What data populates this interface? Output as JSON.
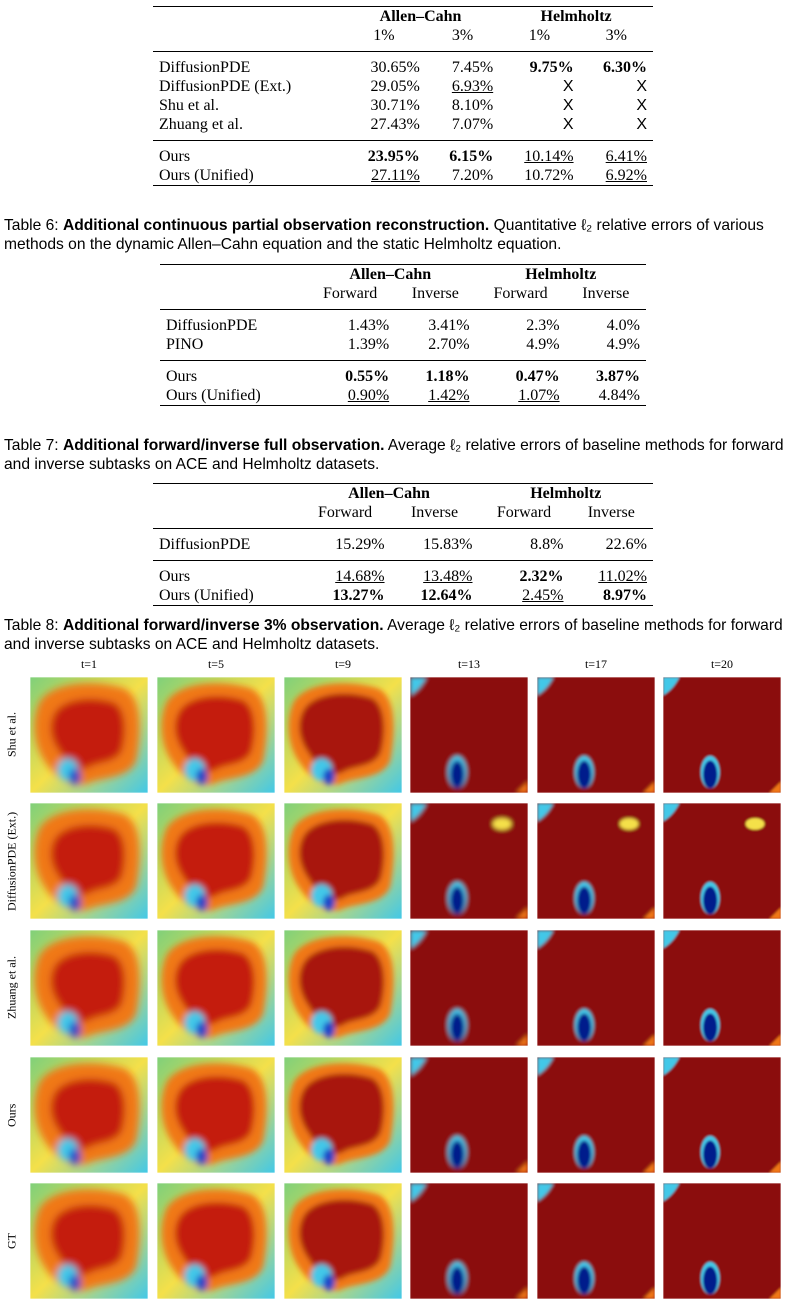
{
  "table6": {
    "groups": [
      "Allen–Cahn",
      "Helmholtz"
    ],
    "sub": [
      "1%",
      "3%",
      "1%",
      "3%"
    ],
    "rows1": [
      {
        "name": "DiffusionPDE",
        "c": [
          "30.65%",
          "7.45%",
          "9.75%",
          "6.30%"
        ]
      },
      {
        "name": "DiffusionPDE (Ext.)",
        "c": [
          "29.05%",
          "6.93%",
          "X",
          "X"
        ]
      },
      {
        "name": "Shu et al.",
        "c": [
          "30.71%",
          "8.10%",
          "X",
          "X"
        ]
      },
      {
        "name": "Zhuang et al.",
        "c": [
          "27.43%",
          "7.07%",
          "X",
          "X"
        ]
      }
    ],
    "rows2": [
      {
        "name": "Ours",
        "c": [
          "23.95%",
          "6.15%",
          "10.14%",
          "6.41%"
        ]
      },
      {
        "name": "Ours (Unified)",
        "c": [
          "27.11%",
          "7.20%",
          "10.72%",
          "6.92%"
        ]
      }
    ],
    "caption_label": "Table 6:",
    "caption_bold": "Additional continuous partial observation reconstruction.",
    "caption_text": "Quantitative ℓ₂ relative errors of various methods on the dynamic Allen–Cahn equation and the static Helmholtz equation."
  },
  "table7": {
    "groups": [
      "Allen–Cahn",
      "Helmholtz"
    ],
    "sub": [
      "Forward",
      "Inverse",
      "Forward",
      "Inverse"
    ],
    "rows1": [
      {
        "name": "DiffusionPDE",
        "c": [
          "1.43%",
          "3.41%",
          "2.3%",
          "4.0%"
        ]
      },
      {
        "name": "PINO",
        "c": [
          "1.39%",
          "2.70%",
          "4.9%",
          "4.9%"
        ]
      }
    ],
    "rows2": [
      {
        "name": "Ours",
        "c": [
          "0.55%",
          "1.18%",
          "0.47%",
          "3.87%"
        ]
      },
      {
        "name": "Ours (Unified)",
        "c": [
          "0.90%",
          "1.42%",
          "1.07%",
          "4.84%"
        ]
      }
    ],
    "caption_label": "Table 7:",
    "caption_bold": "Additional forward/inverse full observation.",
    "caption_text": "Average ℓ₂ relative errors of baseline methods for forward and inverse subtasks on ACE and Helmholtz datasets."
  },
  "table8": {
    "groups": [
      "Allen–Cahn",
      "Helmholtz"
    ],
    "sub": [
      "Forward",
      "Inverse",
      "Forward",
      "Inverse"
    ],
    "rows1": [
      {
        "name": "DiffusionPDE",
        "c": [
          "15.29%",
          "15.83%",
          "8.8%",
          "22.6%"
        ]
      }
    ],
    "rows2": [
      {
        "name": "Ours",
        "c": [
          "14.68%",
          "13.48%",
          "2.32%",
          "11.02%"
        ]
      },
      {
        "name": "Ours (Unified)",
        "c": [
          "13.27%",
          "12.64%",
          "2.45%",
          "8.97%"
        ]
      }
    ],
    "caption_label": "Table 8:",
    "caption_bold": "Additional forward/inverse 3% observation.",
    "caption_text": "Average ℓ₂ relative errors of baseline methods for forward and inverse subtasks on ACE and Helmholtz datasets."
  },
  "figure": {
    "time_labels": [
      "t=1",
      "t=5",
      "t=9",
      "t=13",
      "t=17",
      "t=20"
    ],
    "row_labels": [
      "Shu et al.",
      "DiffusionPDE (Ext.)",
      "Zhuang et al.",
      "Ours",
      "GT"
    ],
    "colors": {
      "deep_red": "#8b0a0a",
      "red": "#c41e0c",
      "orange": "#f07818",
      "yellow": "#f4e04a",
      "green": "#7fd07a",
      "cyan": "#42c8e8",
      "blue": "#1a44c8",
      "navy": "#061a8c"
    }
  }
}
